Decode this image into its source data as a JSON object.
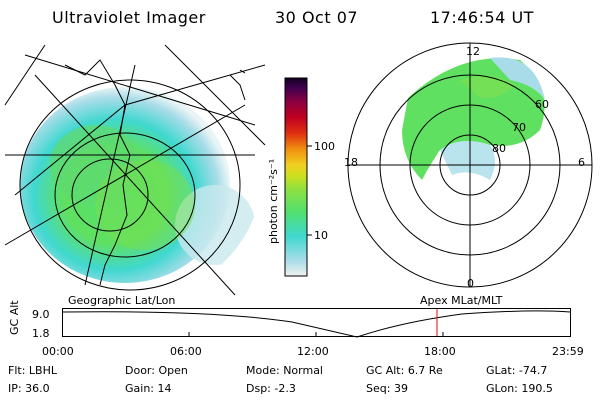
{
  "header": {
    "instrument": "Ultraviolet Imager",
    "date": "30 Oct 07",
    "time": "17:46:54 UT"
  },
  "colorbar": {
    "unit_label": "photon cm⁻²s⁻¹",
    "ticks": [
      "100",
      "10"
    ],
    "colors": [
      "#f0f0f0",
      "#a8dce8",
      "#40d8d0",
      "#50e070",
      "#90e040",
      "#c8e020",
      "#f0d020",
      "#f09010",
      "#e03010",
      "#c00020",
      "#8a0040",
      "#400050",
      "#100020"
    ]
  },
  "geo_panel": {
    "label": "Geographic Lat/Lon"
  },
  "polar_panel": {
    "label": "Apex MLat/MLT",
    "mlt_labels": {
      "top": "12",
      "left": "18",
      "right": "6",
      "bottom": "0"
    },
    "lat_labels": [
      "60",
      "70",
      "80"
    ]
  },
  "altitude_plot": {
    "ylabel": "GC Alt",
    "yticks": [
      "9.0",
      "1.8"
    ],
    "xticks": [
      "00:00",
      "06:00",
      "12:00",
      "18:00",
      "23:59"
    ],
    "marker_time": "17:46:54",
    "marker_color": "#e01010"
  },
  "params": [
    {
      "label": "Flt:",
      "value": "LBHL"
    },
    {
      "label": "Door:",
      "value": "Open"
    },
    {
      "label": "Mode:",
      "value": "Normal"
    },
    {
      "label": "GC Alt:",
      "value": "6.7 Re"
    },
    {
      "label": "GLat:",
      "value": "-74.7"
    },
    {
      "label": "IP:",
      "value": "36.0"
    },
    {
      "label": "Gain:",
      "value": "14"
    },
    {
      "label": "Dsp:",
      "value": "-2.3"
    },
    {
      "label": "Seq:",
      "value": "39"
    },
    {
      "label": "GLon:",
      "value": "190.5"
    }
  ]
}
